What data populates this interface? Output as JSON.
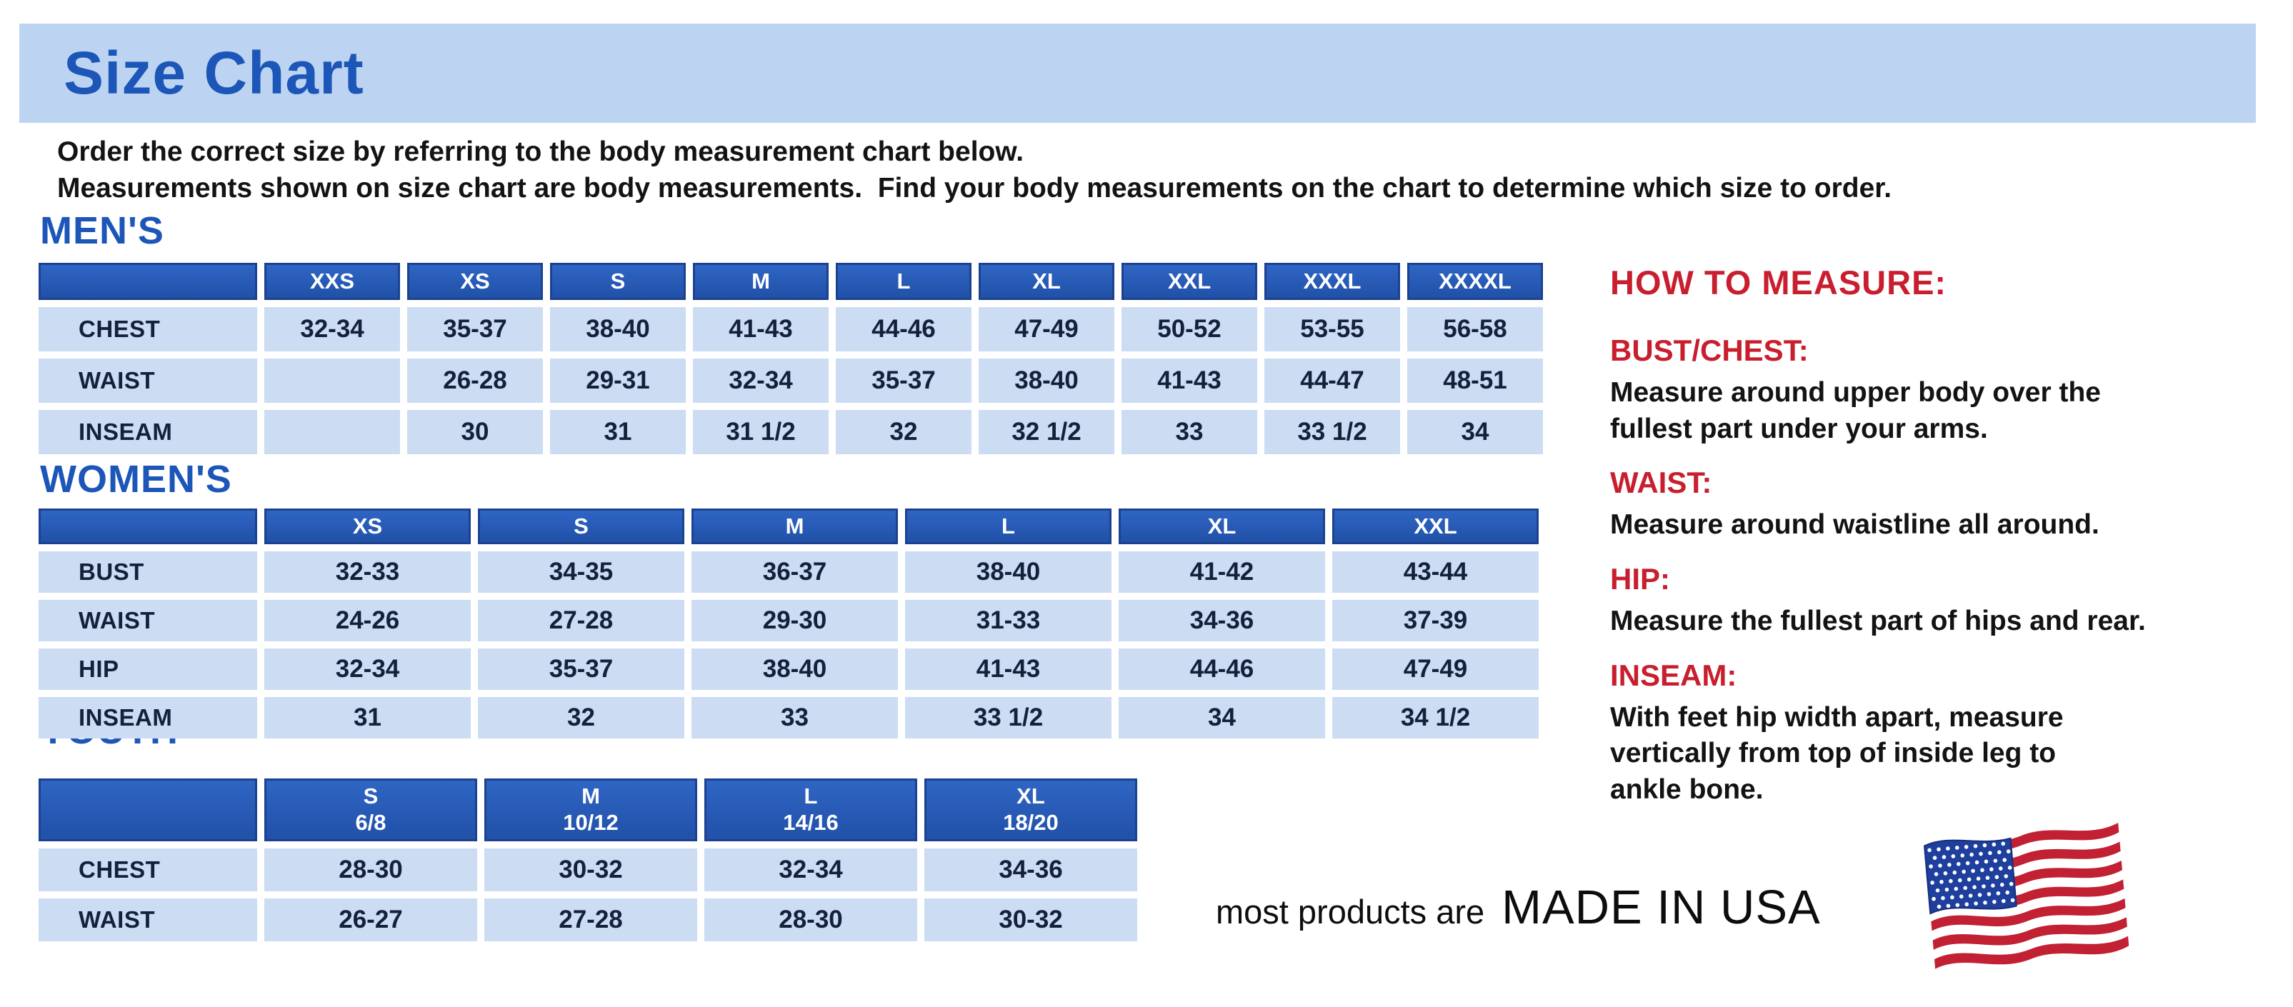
{
  "colors": {
    "band_bg": "#bcd4f1",
    "title_blue": "#1c56b8",
    "header_border": "#1c4190",
    "cell_bg": "#cbdcf3",
    "cell_text": "#14203c",
    "accent_red": "#c81e2e",
    "text_dark": "#131313",
    "flag_red": "#c22033",
    "flag_blue": "#1e3f9e"
  },
  "page": {
    "title": "Size Chart",
    "intro": "Order the correct size by referring to the body measurement chart below.\nMeasurements shown on size chart are body measurements.  Find your body measurements on the chart to determine which size to order."
  },
  "tables": {
    "mens": {
      "heading": "MEN'S",
      "columns": [
        "XXS",
        "XS",
        "S",
        "M",
        "L",
        "XL",
        "XXL",
        "XXXL",
        "XXXXL"
      ],
      "rows": [
        {
          "label": "CHEST",
          "values": [
            "32-34",
            "35-37",
            "38-40",
            "41-43",
            "44-46",
            "47-49",
            "50-52",
            "53-55",
            "56-58"
          ]
        },
        {
          "label": "WAIST",
          "values": [
            "",
            "26-28",
            "29-31",
            "32-34",
            "35-37",
            "38-40",
            "41-43",
            "44-47",
            "48-51"
          ]
        },
        {
          "label": "INSEAM",
          "values": [
            "",
            "30",
            "31",
            "31 1/2",
            "32",
            "32 1/2",
            "33",
            "33 1/2",
            "34"
          ]
        }
      ]
    },
    "womens": {
      "heading": "WOMEN'S",
      "columns": [
        "XS",
        "S",
        "M",
        "L",
        "XL",
        "XXL"
      ],
      "rows": [
        {
          "label": "BUST",
          "values": [
            "32-33",
            "34-35",
            "36-37",
            "38-40",
            "41-42",
            "43-44"
          ]
        },
        {
          "label": "WAIST",
          "values": [
            "24-26",
            "27-28",
            "29-30",
            "31-33",
            "34-36",
            "37-39"
          ]
        },
        {
          "label": "HIP",
          "values": [
            "32-34",
            "35-37",
            "38-40",
            "41-43",
            "44-46",
            "47-49"
          ]
        },
        {
          "label": "INSEAM",
          "values": [
            "31",
            "32",
            "33",
            "33 1/2",
            "34",
            "34 1/2"
          ]
        }
      ]
    },
    "youth": {
      "heading": "YOUTH",
      "columns": [
        "S\n6/8",
        "M\n10/12",
        "L\n14/16",
        "XL\n18/20"
      ],
      "rows": [
        {
          "label": "CHEST",
          "values": [
            "28-30",
            "30-32",
            "32-34",
            "34-36"
          ]
        },
        {
          "label": "WAIST",
          "values": [
            "26-27",
            "27-28",
            "28-30",
            "30-32"
          ]
        }
      ]
    }
  },
  "measure": {
    "heading": "HOW TO MEASURE:",
    "items": [
      {
        "label": "BUST/CHEST:",
        "text": "Measure around upper body over the\nfullest part under your arms."
      },
      {
        "label": "WAIST:",
        "text": "Measure around waistline all around."
      },
      {
        "label": "HIP:",
        "text": "Measure the fullest part of hips and rear."
      },
      {
        "label": "INSEAM:",
        "text": "With feet hip width apart, measure\nvertically from top of inside leg to\nankle bone."
      }
    ]
  },
  "footer": {
    "prefix": "most products are",
    "emphasis": "MADE IN USA",
    "flag_icon": "us-flag-icon"
  }
}
